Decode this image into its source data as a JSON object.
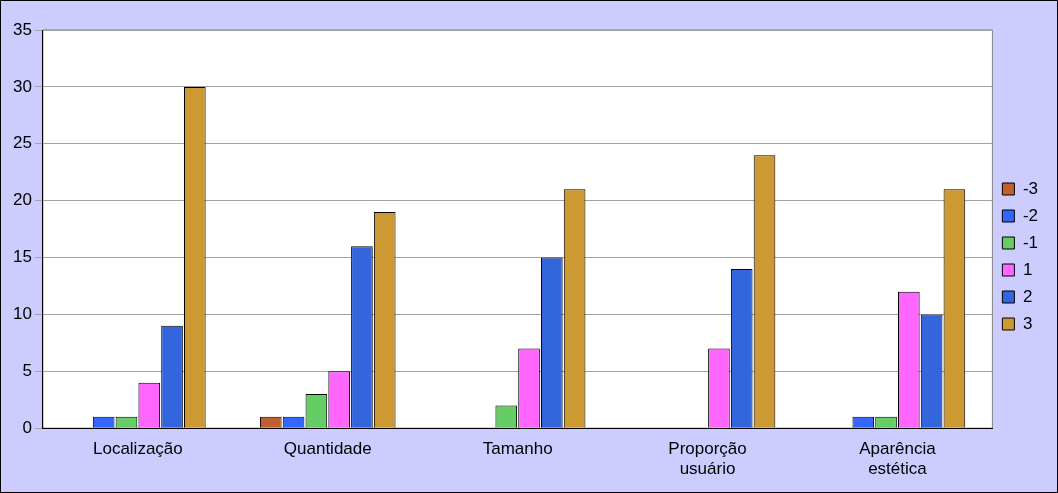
{
  "chart_data": {
    "type": "bar",
    "categories": [
      "Localização",
      "Quantidade",
      "Tamanho",
      "Proporção usuário",
      "Aparência estética"
    ],
    "series": [
      {
        "name": "-3",
        "color": "#c0602f",
        "values": [
          0,
          1,
          0,
          0,
          0
        ]
      },
      {
        "name": "-2",
        "color": "#3366ff",
        "values": [
          1,
          1,
          0,
          0,
          1
        ]
      },
      {
        "name": "-1",
        "color": "#66cc66",
        "values": [
          1,
          3,
          2,
          0,
          1
        ]
      },
      {
        "name": "1",
        "color": "#ff66ff",
        "values": [
          4,
          5,
          7,
          7,
          12
        ]
      },
      {
        "name": "2",
        "color": "#3366dd",
        "values": [
          9,
          16,
          15,
          14,
          10
        ]
      },
      {
        "name": "3",
        "color": "#cc9933",
        "values": [
          30,
          19,
          21,
          24,
          21
        ]
      }
    ],
    "ylim": [
      0,
      35
    ],
    "yticks": [
      0,
      5,
      10,
      15,
      20,
      25,
      30,
      35
    ],
    "grid": "y",
    "legend": "right"
  }
}
